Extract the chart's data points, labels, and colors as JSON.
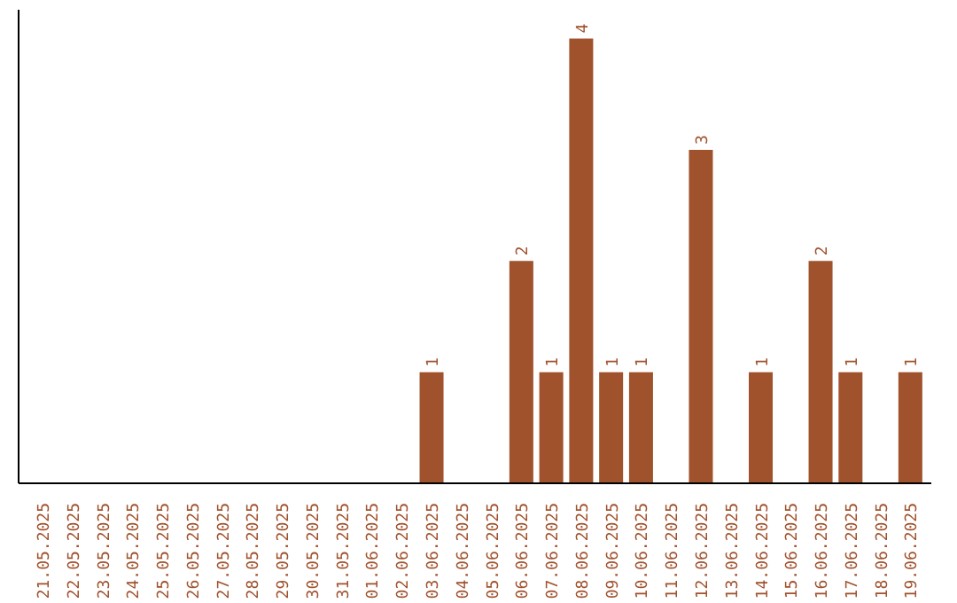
{
  "chart_data": {
    "type": "bar",
    "categories": [
      "21.05.2025",
      "22.05.2025",
      "23.05.2025",
      "24.05.2025",
      "25.05.2025",
      "26.05.2025",
      "27.05.2025",
      "28.05.2025",
      "29.05.2025",
      "30.05.2025",
      "31.05.2025",
      "01.06.2025",
      "02.06.2025",
      "03.06.2025",
      "04.06.2025",
      "05.06.2025",
      "06.06.2025",
      "07.06.2025",
      "08.06.2025",
      "09.06.2025",
      "10.06.2025",
      "11.06.2025",
      "12.06.2025",
      "13.06.2025",
      "14.06.2025",
      "15.06.2025",
      "16.06.2025",
      "17.06.2025",
      "18.06.2025",
      "19.06.2025"
    ],
    "values": [
      null,
      null,
      null,
      null,
      null,
      null,
      null,
      null,
      null,
      null,
      null,
      null,
      null,
      1,
      null,
      null,
      2,
      1,
      4,
      1,
      1,
      null,
      3,
      null,
      1,
      null,
      2,
      1,
      null,
      1
    ],
    "data_labels": true,
    "color": "#a0522d",
    "grid": false,
    "tick_labels": "x"
  }
}
